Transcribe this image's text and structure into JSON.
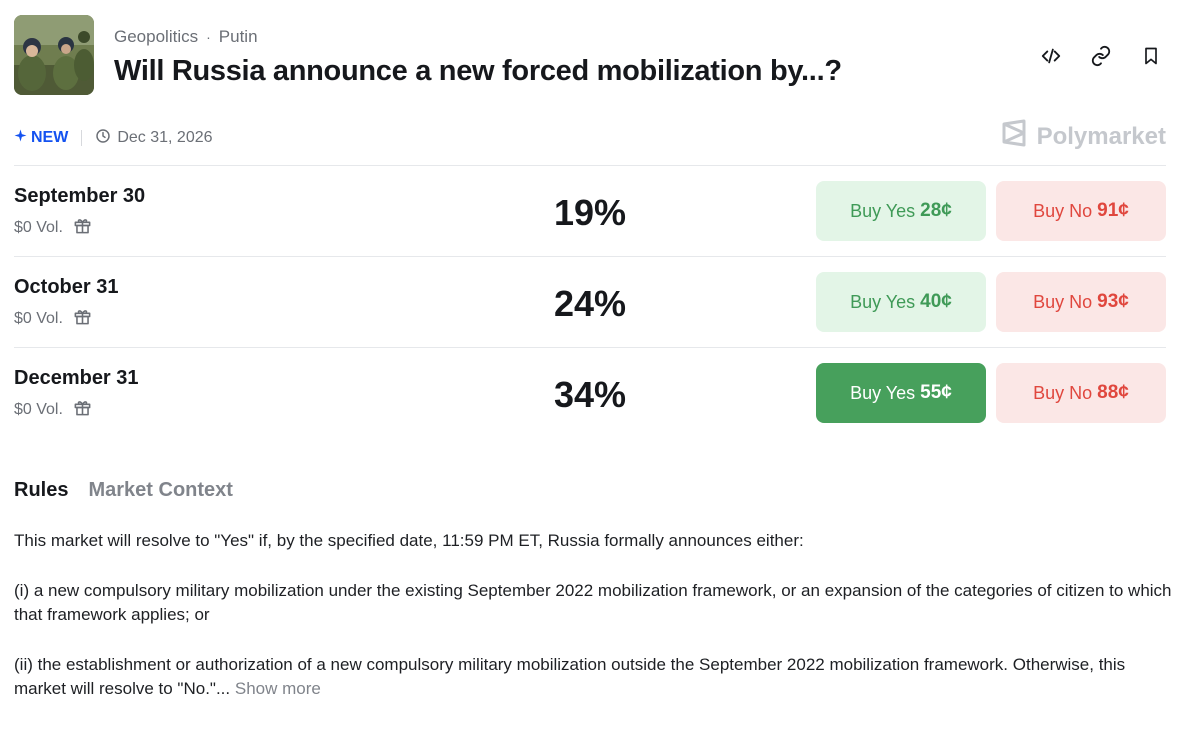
{
  "header": {
    "thumbnail_alt": "soldiers",
    "crumbs": [
      "Geopolitics",
      "Putin"
    ],
    "crumb_separator": "·",
    "title": "Will Russia announce a new forced mobilization by...?",
    "actions": [
      {
        "name": "embed-icon"
      },
      {
        "name": "link-icon"
      },
      {
        "name": "bookmark-icon"
      }
    ]
  },
  "meta": {
    "badge": "NEW",
    "badge_icon": "sparkle-icon",
    "date": "Dec 31, 2026",
    "date_icon": "clock-icon",
    "brand": "Polymarket",
    "brand_icon": "polymarket-logo-icon"
  },
  "colors": {
    "new": "#1452f0",
    "yes_bg": "#e3f5e7",
    "yes_text": "#3f9a57",
    "yes_active_bg": "#47a05c",
    "no_bg": "#fbe7e6",
    "no_text": "#e0473e"
  },
  "outcomes": [
    {
      "label": "September 30",
      "volume": "$0 Vol.",
      "volume_icon": "gift-icon",
      "percent": "19%",
      "yes_label": "Buy Yes",
      "yes_price": "28¢",
      "no_label": "Buy No",
      "no_price": "91¢",
      "yes_active": false
    },
    {
      "label": "October 31",
      "volume": "$0 Vol.",
      "volume_icon": "gift-icon",
      "percent": "24%",
      "yes_label": "Buy Yes",
      "yes_price": "40¢",
      "no_label": "Buy No",
      "no_price": "93¢",
      "yes_active": false
    },
    {
      "label": "December 31",
      "volume": "$0 Vol.",
      "volume_icon": "gift-icon",
      "percent": "34%",
      "yes_label": "Buy Yes",
      "yes_price": "55¢",
      "no_label": "Buy No",
      "no_price": "88¢",
      "yes_active": true
    }
  ],
  "tabs": [
    {
      "label": "Rules",
      "active": true
    },
    {
      "label": "Market Context",
      "active": false
    }
  ],
  "rules": {
    "p1": "This market will resolve to \"Yes\" if, by the specified date, 11:59 PM ET, Russia formally announces either:",
    "p2": "(i) a new compulsory military mobilization under the existing September 2022 mobilization framework, or an expansion of the categories of citizen to which that framework applies; or",
    "p3": "(ii) the establishment or authorization of a new compulsory military mobilization outside the September 2022 mobilization framework. Otherwise, this market will resolve to \"No.\"...",
    "show_more": "Show more"
  }
}
